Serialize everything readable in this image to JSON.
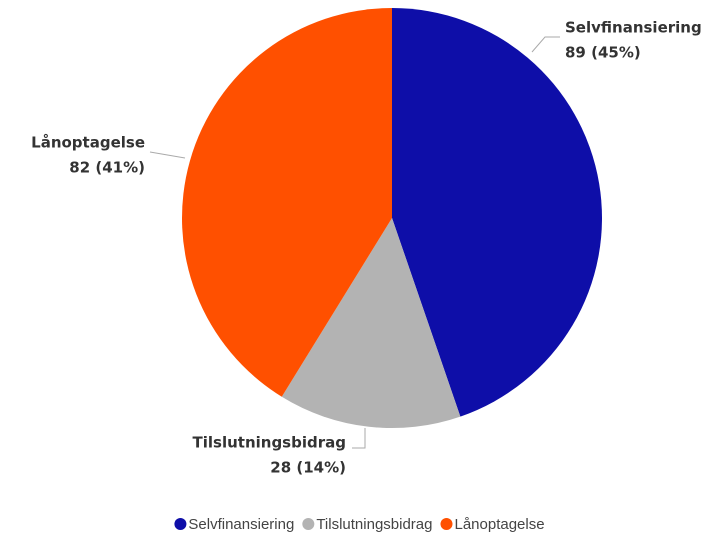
{
  "chart_data": {
    "type": "pie",
    "categories": [
      "Selvfinansiering",
      "Tilslutningsbidrag",
      "Lånoptagelse"
    ],
    "values": [
      89,
      28,
      82
    ],
    "value_labels": [
      "89 (45%)",
      "28 (14%)",
      "82 (41%)"
    ],
    "colors": [
      "#0e0ea8",
      "#b3b3b3",
      "#ff5000"
    ],
    "legend": "bottom"
  }
}
